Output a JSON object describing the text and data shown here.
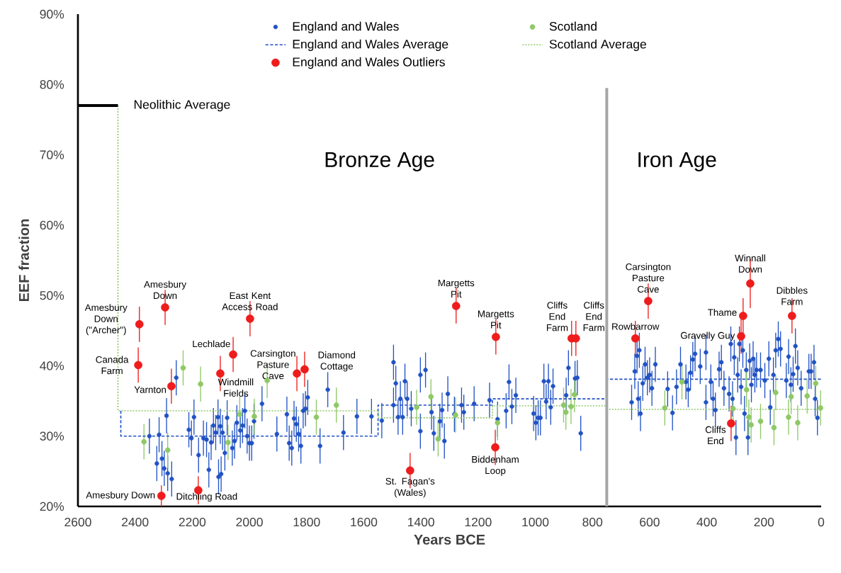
{
  "chart_data": {
    "type": "scatter",
    "xlabel": "Years BCE",
    "ylabel": "EEF fraction",
    "xlim": [
      2600,
      0
    ],
    "xticks": [
      2600,
      2400,
      2200,
      2000,
      1800,
      1600,
      1400,
      1200,
      1000,
      800,
      600,
      400,
      200,
      0
    ],
    "ylim": [
      20,
      90
    ],
    "yticks": [
      {
        "value": 20,
        "label": "20%"
      },
      {
        "value": 30,
        "label": "30%"
      },
      {
        "value": 40,
        "label": "40%"
      },
      {
        "value": 50,
        "label": "50%"
      },
      {
        "value": 60,
        "label": "60%"
      },
      {
        "value": 70,
        "label": "70%"
      },
      {
        "value": 80,
        "label": "80%"
      },
      {
        "value": 90,
        "label": "90%"
      }
    ],
    "legend": "top",
    "ref_lines": [
      {
        "axis": "x",
        "value": 750,
        "color": "#a6a6a6"
      }
    ],
    "series": [
      {
        "name": "England and Wales",
        "marker": "circle",
        "color": "#2152c4",
        "x": [
          2350,
          2316,
          2306,
          2298,
          2290,
          2286,
          2324,
          2272,
          2256,
          2212,
          2203,
          2194,
          2178,
          2161,
          2150,
          2142,
          2134,
          2126,
          2118,
          2110,
          2102,
          2094,
          2086,
          2078,
          2099,
          2108,
          2060,
          2052,
          2044,
          2032,
          2024,
          2016,
          2008,
          2000,
          1992,
          1984,
          1956,
          1904,
          1869,
          1861,
          1852,
          1844,
          1836,
          1828,
          1820,
          1812,
          1804,
          1796,
          1753,
          1726,
          1671,
          1624,
          1573,
          1537,
          1488,
          1496,
          1472,
          1496,
          1480,
          1456,
          1448,
          1464,
          1434,
          1402,
          1402,
          1384,
          1363,
          1355,
          1334,
          1326,
          1318,
          1306,
          1283,
          1258,
          1250,
          1214,
          1160,
          1132,
          1102,
          1092,
          1082,
          1068,
          1006,
          990,
          998,
          982,
          970,
          962,
          954,
          946,
          938,
          892,
          884,
          861,
          853,
          841,
          663,
          652,
          644,
          636,
          640,
          632,
          624,
          616,
          608,
          600,
          592,
          580,
          537,
          520,
          506,
          492,
          473,
          465,
          457,
          449,
          441,
          423,
          403,
          403,
          386,
          378,
          370,
          357,
          349,
          340,
          322,
          316,
          310,
          304,
          298,
          292,
          286,
          280,
          274,
          268,
          262,
          256,
          250,
          244,
          238,
          232,
          226,
          212,
          197,
          183,
          178,
          167,
          159,
          150,
          142,
          122,
          114,
          106,
          98,
          90,
          82,
          70,
          43,
          35,
          25,
          21,
          13
        ],
        "values": [
          30.0,
          30.2,
          26.8,
          25.4,
          32.9,
          24.7,
          26.1,
          23.9,
          38.3,
          30.9,
          29.7,
          32.7,
          27.3,
          29.7,
          29.5,
          25.2,
          29.1,
          31.5,
          30.5,
          32.7,
          31.4,
          30.5,
          27.6,
          32.6,
          24.6,
          24.2,
          28.3,
          29.3,
          31.9,
          30.8,
          31.5,
          33.6,
          30.0,
          29.0,
          29.0,
          32.1,
          34.6,
          30.3,
          33.1,
          29.0,
          28.3,
          32.5,
          31.7,
          30.3,
          28.6,
          33.6,
          33.9,
          35.5,
          28.6,
          36.6,
          30.5,
          32.8,
          32.8,
          32.2,
          37.5,
          40.5,
          35.3,
          34.4,
          32.7,
          37.8,
          35.3,
          32.7,
          33.9,
          38.7,
          30.7,
          39.4,
          33.4,
          30.4,
          32.1,
          33.7,
          29.3,
          36.0,
          33.1,
          34.4,
          33.4,
          34.6,
          35.1,
          32.4,
          33.6,
          37.7,
          34.2,
          35.8,
          33.2,
          32.6,
          31.9,
          32.6,
          37.8,
          34.9,
          37.8,
          34.1,
          37.1,
          35.8,
          39.7,
          38.2,
          38.3,
          30.4,
          34.8,
          39.2,
          41.4,
          42.2,
          35.3,
          33.2,
          37.5,
          40.2,
          38.3,
          38.7,
          36.8,
          40.2,
          36.7,
          33.3,
          37.0,
          40.2,
          37.7,
          36.6,
          39.0,
          40.9,
          41.7,
          39.9,
          41.9,
          34.8,
          37.7,
          35.3,
          33.7,
          39.5,
          40.5,
          36.8,
          36.0,
          43.1,
          35.3,
          41.2,
          29.8,
          38.7,
          43.1,
          37.0,
          42.2,
          33.2,
          39.4,
          29.8,
          40.7,
          37.3,
          41.0,
          38.7,
          39.4,
          39.4,
          37.9,
          41.0,
          34.1,
          38.7,
          42.2,
          43.8,
          42.4,
          37.9,
          41.3,
          37.3,
          38.8,
          42.8,
          39.7,
          36.8,
          39.2,
          39.2,
          40.5,
          35.3,
          32.6
        ],
        "errors": [
          2.5,
          2.5,
          2.5,
          2.5,
          2.5,
          2.5,
          2.5,
          2.5,
          2.5,
          2.5,
          2.5,
          2.5,
          2.5,
          2.5,
          2.5,
          2.5,
          2.5,
          2.5,
          2.5,
          2.5,
          2.5,
          2.5,
          2.5,
          2.5,
          2.5,
          2.5,
          2.5,
          2.5,
          2.5,
          2.5,
          2.5,
          2.5,
          2.5,
          2.5,
          2.5,
          2.5,
          2.5,
          2.5,
          2.5,
          2.5,
          2.5,
          2.5,
          2.5,
          2.5,
          2.5,
          2.5,
          2.5,
          2.5,
          2.5,
          2.5,
          2.5,
          2.5,
          2.5,
          2.5,
          2.5,
          2.5,
          2.5,
          2.5,
          2.5,
          2.5,
          2.5,
          2.5,
          2.5,
          2.5,
          2.5,
          2.5,
          2.5,
          2.5,
          2.5,
          2.5,
          2.5,
          2.5,
          2.5,
          2.5,
          2.5,
          2.5,
          2.5,
          2.5,
          2.5,
          2.5,
          2.5,
          2.5,
          2.5,
          2.5,
          2.5,
          2.5,
          2.5,
          2.5,
          2.5,
          2.5,
          2.5,
          2.5,
          2.5,
          2.5,
          2.5,
          2.5,
          2.5,
          2.5,
          2.5,
          2.5,
          2.5,
          2.5,
          2.5,
          2.5,
          2.5,
          2.5,
          2.5,
          2.5,
          2.5,
          2.5,
          2.5,
          2.5,
          2.5,
          2.5,
          2.5,
          2.5,
          2.5,
          2.5,
          2.5,
          2.5,
          2.5,
          2.5,
          2.5,
          2.5,
          2.5,
          2.5,
          2.5,
          2.5,
          2.5,
          2.5,
          2.5,
          2.5,
          2.5,
          2.5,
          2.5,
          2.5,
          2.5,
          2.5,
          2.5,
          2.5,
          2.5,
          2.5,
          2.5,
          2.5,
          2.5,
          2.5,
          2.5,
          2.5,
          2.5,
          2.5,
          2.5,
          2.5,
          2.5,
          2.5,
          2.5,
          2.5,
          2.5,
          2.5,
          2.5,
          2.5,
          2.5,
          2.5,
          2.5
        ]
      },
      {
        "name": "Scotland",
        "marker": "circle",
        "color": "#8fc866",
        "x": [
          2369,
          2286,
          2232,
          2171,
          2075,
          2034,
          1983,
          1938,
          1766,
          1696,
          1415,
          1365,
          1279,
          1340,
          1132,
          901,
          893,
          875,
          863,
          547,
          487,
          308,
          261,
          253,
          245,
          212,
          165,
          159,
          114,
          105,
          82,
          49,
          19,
          2
        ],
        "values": [
          29.2,
          28.0,
          39.7,
          37.4,
          29.1,
          33.1,
          32.8,
          37.9,
          32.7,
          34.4,
          34.1,
          35.6,
          33.0,
          29.6,
          31.9,
          34.4,
          33.4,
          34.2,
          35.9,
          34.0,
          37.7,
          33.9,
          36.6,
          32.7,
          31.6,
          32.1,
          31.2,
          36.2,
          32.7,
          35.6,
          31.9,
          35.7,
          37.5,
          34.0
        ],
        "errors": [
          2.5,
          2.5,
          2.5,
          2.5,
          2.5,
          2.5,
          2.5,
          2.5,
          2.5,
          2.5,
          2.5,
          2.5,
          2.5,
          2.5,
          2.5,
          2.5,
          2.5,
          2.5,
          2.5,
          2.5,
          2.5,
          2.5,
          2.5,
          2.5,
          2.5,
          2.5,
          2.5,
          2.5,
          2.5,
          2.5,
          2.5,
          2.5,
          2.5,
          2.5
        ]
      },
      {
        "name": "England and Wales Average",
        "type": "line",
        "marker": "none",
        "line_style": "dashed",
        "color": "#2152c4",
        "x": [
          2450,
          2450,
          1550,
          1550,
          1150,
          1150,
          750,
          750,
          0
        ],
        "values": [
          33.6,
          30,
          30,
          34.4,
          34.4,
          35.3,
          35.3,
          38.1,
          38.1
        ]
      },
      {
        "name": "Scotland Average",
        "type": "line",
        "marker": "none",
        "line_style": "dotted",
        "color": "#8fc866",
        "x": [
          2460,
          2460,
          1550,
          1550,
          1150,
          1150,
          750,
          750,
          0
        ],
        "values": [
          77,
          33.6,
          33.6,
          32.6,
          32.6,
          34.3,
          34.3,
          33.8,
          33.8
        ]
      },
      {
        "name": "England and Wales Outliers",
        "marker": "circle",
        "color": "#ee1c1c",
        "x": [
          2385,
          2295,
          2389,
          2273,
          2308,
          2179,
          2102,
          2057,
          1998,
          1834,
          1807,
          1438,
          1277,
          1138,
          1140,
          873,
          858,
          650,
          605,
          248,
          273,
          280,
          102,
          315
        ],
        "values": [
          45.9,
          48.3,
          40.1,
          37.1,
          21.5,
          22.3,
          38.9,
          41.6,
          46.7,
          38.9,
          39.5,
          25.1,
          48.5,
          44.1,
          28.4,
          43.9,
          43.9,
          43.9,
          49.2,
          51.7,
          47.1,
          44.2,
          47.1,
          31.8
        ],
        "errors": [
          2.5,
          2.5,
          2.5,
          2.5,
          1.5,
          2,
          2.5,
          2.5,
          2.5,
          2.5,
          2.5,
          2.5,
          2.5,
          2.5,
          2.5,
          2.5,
          2.5,
          2.5,
          2.5,
          3.5,
          2.5,
          2.5,
          2.5,
          2.5
        ]
      },
      {
        "type": "line",
        "marker": "none",
        "line_style": "solid",
        "color": "#000000",
        "x": [
          2600,
          2460
        ],
        "values": [
          77,
          77
        ]
      }
    ],
    "annotations": [
      {
        "text": "Amesbury Down (\"Archer\")",
        "x": 2385,
        "y": 45.9
      },
      {
        "text": "Amesbury Down",
        "x": 2295,
        "y": 48.3
      },
      {
        "text": "Canada Farm",
        "x": 2389,
        "y": 40.1
      },
      {
        "text": "Yarnton",
        "x": 2273,
        "y": 37.1
      },
      {
        "text": "Amesbury Down",
        "x": 2308,
        "y": 21.5
      },
      {
        "text": "Ditchling Road",
        "x": 2179,
        "y": 22.3
      },
      {
        "text": "Windmill Fields",
        "x": 2102,
        "y": 38.9
      },
      {
        "text": "Lechlade",
        "x": 2057,
        "y": 41.6
      },
      {
        "text": "East Kent Access Road",
        "x": 1998,
        "y": 46.7
      },
      {
        "text": "Carsington Pasture Cave",
        "x": 1834,
        "y": 38.9
      },
      {
        "text": "Diamond Cottage",
        "x": 1807,
        "y": 39.5
      },
      {
        "text": "St. Fagan's (Wales)",
        "x": 1438,
        "y": 25.1
      },
      {
        "text": "Margetts Pit",
        "x": 1277,
        "y": 48.5
      },
      {
        "text": "Margetts Pit",
        "x": 1138,
        "y": 44.1
      },
      {
        "text": "Biddenham Loop",
        "x": 1140,
        "y": 28.4
      },
      {
        "text": "Cliffs End Farm",
        "x": 873,
        "y": 43.9
      },
      {
        "text": "Cliffs End Farm",
        "x": 858,
        "y": 43.9
      },
      {
        "text": "Rowbarrow",
        "x": 650,
        "y": 43.9
      },
      {
        "text": "Carsington Pasture Cave",
        "x": 605,
        "y": 49.2
      },
      {
        "text": "Winnall Down",
        "x": 248,
        "y": 51.7
      },
      {
        "text": "Thame",
        "x": 273,
        "y": 47.1
      },
      {
        "text": "Gravelly Guy",
        "x": 280,
        "y": 44.2
      },
      {
        "text": "Dibbles Farm",
        "x": 102,
        "y": 47.1
      },
      {
        "text": "Cliffs End",
        "x": 315,
        "y": 31.8
      },
      {
        "text": "Neolithic Average",
        "x": 2460,
        "y": 77
      },
      "Bronze Age",
      "Iron Age"
    ]
  }
}
